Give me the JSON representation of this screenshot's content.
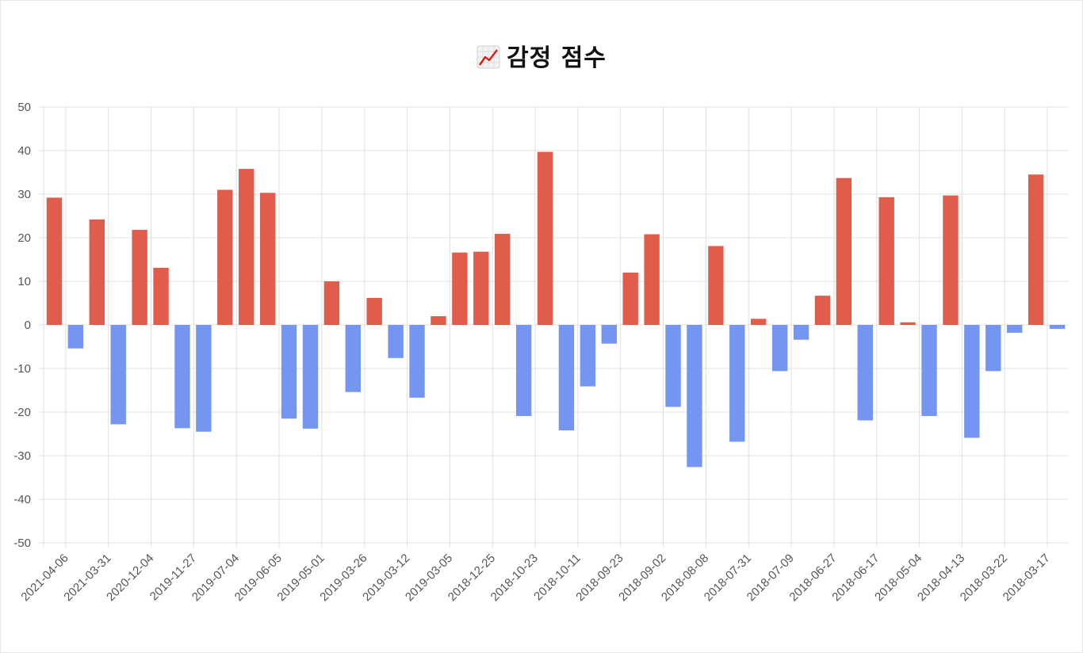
{
  "page": {
    "title": "감정 점수",
    "title_icon": "chart-increasing-icon"
  },
  "chart_data": {
    "type": "bar",
    "title": "감정 점수",
    "xlabel": "",
    "ylabel": "",
    "ylim": [
      -50,
      50
    ],
    "yticks": [
      50,
      40,
      30,
      20,
      10,
      0,
      -10,
      -20,
      -30,
      -40,
      -50
    ],
    "grid": true,
    "legend": "none",
    "colors": {
      "positive": "#e05c4b",
      "negative": "#7495f2"
    },
    "x_tick_labels": [
      "2021-04-06",
      "2021-03-31",
      "2020-12-04",
      "2019-11-27",
      "2019-07-04",
      "2019-06-05",
      "2019-05-01",
      "2019-03-26",
      "2019-03-12",
      "2019-03-05",
      "2018-12-25",
      "2018-10-23",
      "2018-10-11",
      "2018-09-23",
      "2018-09-02",
      "2018-08-08",
      "2018-07-31",
      "2018-07-09",
      "2018-06-27",
      "2018-06-17",
      "2018-05-04",
      "2018-04-13",
      "2018-03-22",
      "2018-03-17"
    ],
    "values": [
      29.2,
      -5.4,
      24.2,
      -22.8,
      21.8,
      13.1,
      -23.7,
      -24.5,
      31.0,
      35.8,
      30.3,
      -21.5,
      -23.8,
      10.0,
      -15.4,
      6.2,
      -7.6,
      -16.7,
      2.0,
      16.6,
      16.8,
      20.9,
      -20.9,
      39.7,
      -24.2,
      -14.1,
      -4.3,
      12.0,
      20.8,
      -18.8,
      -32.6,
      18.1,
      -26.8,
      1.4,
      -10.6,
      -3.4,
      6.7,
      33.7,
      -21.9,
      29.3,
      0.6,
      -20.9,
      29.7,
      -25.9,
      -10.6,
      -1.8,
      34.5,
      -0.9
    ]
  }
}
